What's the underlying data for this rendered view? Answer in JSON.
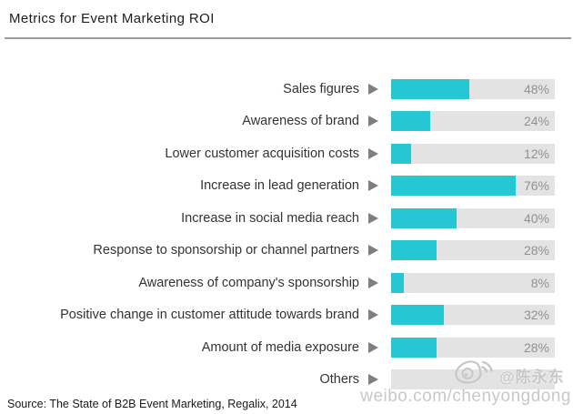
{
  "header": {
    "title": "Metrics for Event Marketing ROI"
  },
  "footer": {
    "source": "Source: The State of B2B Event Marketing, Regalix, 2014"
  },
  "watermark": {
    "icon": "weibo-logo",
    "handle": "@陈永东",
    "url": "weibo.com/chenyongdong"
  },
  "colors": {
    "bar_fill": "#26c6d2",
    "bar_bg": "#e3e3e3",
    "arrow": "#7f7f7f",
    "value_text": "#919191",
    "label_text": "#333333",
    "rule": "#9b9b9b",
    "watermark_text": "#c6c6c6"
  },
  "chart_data": {
    "type": "bar",
    "orientation": "horizontal",
    "title": "Metrics for Event Marketing ROI",
    "xlabel": "",
    "ylabel": "",
    "xlim": [
      0,
      100
    ],
    "unit": "%",
    "grid": false,
    "legend": "none",
    "categories": [
      "Sales figures",
      "Awareness of brand",
      "Lower customer acquisition costs",
      "Increase in lead generation",
      "Increase in social media reach",
      "Response to sponsorship or channel partners",
      "Awareness of company's sponsorship",
      "Positive change in customer attitude towards brand",
      "Amount of media exposure",
      "Others"
    ],
    "values": [
      48,
      24,
      12,
      76,
      40,
      28,
      8,
      32,
      28,
      0
    ],
    "value_labels": [
      "48%",
      "24%",
      "12%",
      "76%",
      "40%",
      "28%",
      "8%",
      "32%",
      "28%",
      ""
    ]
  }
}
